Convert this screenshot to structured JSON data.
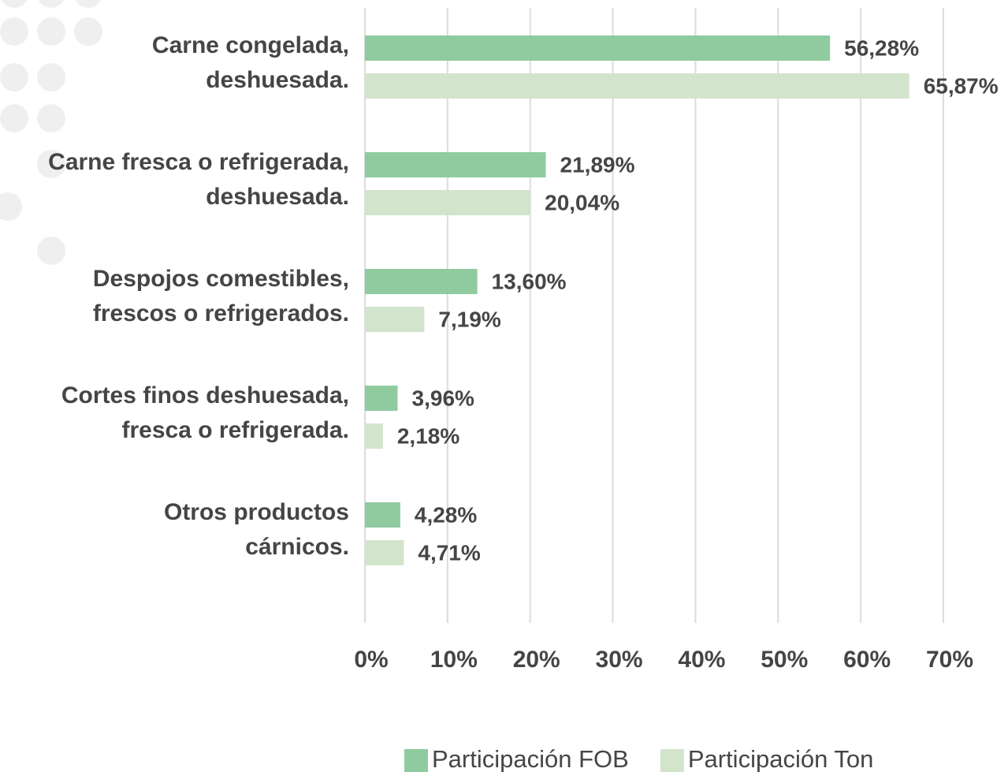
{
  "chart_data": {
    "type": "barh",
    "categories": [
      [
        "Carne congelada,",
        "deshuesada."
      ],
      [
        "Carne fresca o refrigerada,",
        "deshuesada."
      ],
      [
        "Despojos comestibles,",
        "frescos o refrigerados."
      ],
      [
        "Cortes finos deshuesada,",
        "fresca o refrigerada."
      ],
      [
        "Otros productos",
        "cárnicos."
      ]
    ],
    "series": [
      {
        "name": "Participación FOB",
        "color": "#8fcb9f",
        "values": [
          56.28,
          21.89,
          13.6,
          3.96,
          4.28
        ],
        "value_labels": [
          "56,28%",
          "21,89%",
          "13,60%",
          "3,96%",
          "4,28%"
        ]
      },
      {
        "name": "Participación Ton",
        "color": "#d3e4cc",
        "values": [
          65.87,
          20.04,
          7.19,
          2.18,
          4.71
        ],
        "value_labels": [
          "65,87%",
          "20,04%",
          "7,19%",
          "2,18%",
          "4,71%"
        ]
      }
    ],
    "xlim": [
      0,
      70
    ],
    "xticks": [
      {
        "value": 0,
        "label": "0%"
      },
      {
        "value": 10,
        "label": "10%"
      },
      {
        "value": 20,
        "label": "20%"
      },
      {
        "value": 30,
        "label": "30%"
      },
      {
        "value": 40,
        "label": "40%"
      },
      {
        "value": 50,
        "label": "50%"
      },
      {
        "value": 60,
        "label": "60%"
      },
      {
        "value": 70,
        "label": "70%"
      }
    ],
    "grid": true,
    "legend": "bottom"
  }
}
